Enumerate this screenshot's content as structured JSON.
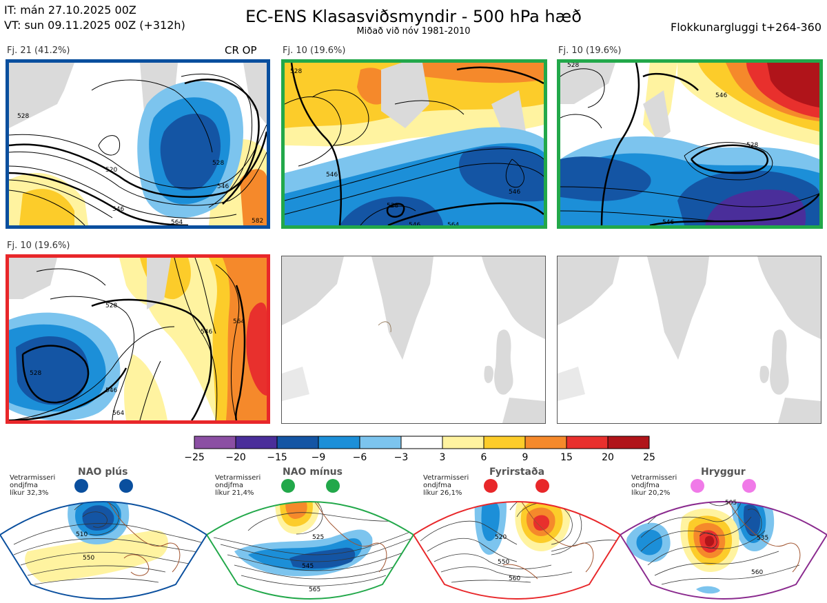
{
  "header": {
    "it_line": "IT: mán 27.10.2025 00Z",
    "vt_line": "VT: sun 09.11.2025 00Z  (+312h)",
    "title": "EC-ENS Klasasviðsmyndir - 500 hPa hæð",
    "subtitle": "Miðað við nóv 1981-2010",
    "window": "Flokkunargluggi t+264-360"
  },
  "panels": [
    {
      "label": "Fj. 21 (41.2%)",
      "extra": "CR OP",
      "border": "#0a4f9e",
      "contours": [
        "528",
        "520",
        "546",
        "528",
        "546",
        "564",
        "582"
      ]
    },
    {
      "label": "Fj. 10 (19.6%)",
      "extra": "",
      "border": "#22a84a",
      "contours": [
        "528",
        "546",
        "528",
        "546",
        "564",
        "546"
      ]
    },
    {
      "label": "Fj. 10 (19.6%)",
      "extra": "",
      "border": "#22a84a",
      "contours": [
        "528",
        "546",
        "528",
        "546"
      ]
    },
    {
      "label": "Fj. 10 (19.6%)",
      "extra": "",
      "border": "#e8272a",
      "contours": [
        "528",
        "546",
        "564",
        "528",
        "546",
        "564"
      ]
    }
  ],
  "colorbar": {
    "colors": [
      "#8b4fa3",
      "#4a2e9a",
      "#1455a4",
      "#1c8fd8",
      "#7cc4ee",
      "#ffffff",
      "#fff3a0",
      "#fccc2a",
      "#f5892b",
      "#e8302d",
      "#b0141a"
    ],
    "ticks": [
      "−25",
      "−20",
      "−15",
      "−9",
      "−6",
      "−3",
      "3",
      "6",
      "9",
      "15",
      "20",
      "25"
    ]
  },
  "regimes": [
    {
      "title": "NAO plús",
      "text": "Vetrarmisseri\nondjfma\nlíkur 32,3%",
      "color": "#0a4f9e",
      "labels": [
        "510",
        "550"
      ]
    },
    {
      "title": "NAO mínus",
      "text": "Vetrarmisseri\nondjfma\nlíkur 21,4%",
      "color": "#22a84a",
      "labels": [
        "525",
        "545",
        "565"
      ]
    },
    {
      "title": "Fyrirstaða",
      "text": "Vetrarmisseri\nondjfma\nlíkur 26,1%",
      "color": "#e8272a",
      "labels": [
        "520",
        "550",
        "560"
      ]
    },
    {
      "title": "Hryggur",
      "text": "Vetrarmisseri\nondjfma\nlíkur 20,2%",
      "color": "#8a2a8e",
      "dot_color": "#f07ae8",
      "labels": [
        "505",
        "535",
        "560"
      ]
    }
  ]
}
